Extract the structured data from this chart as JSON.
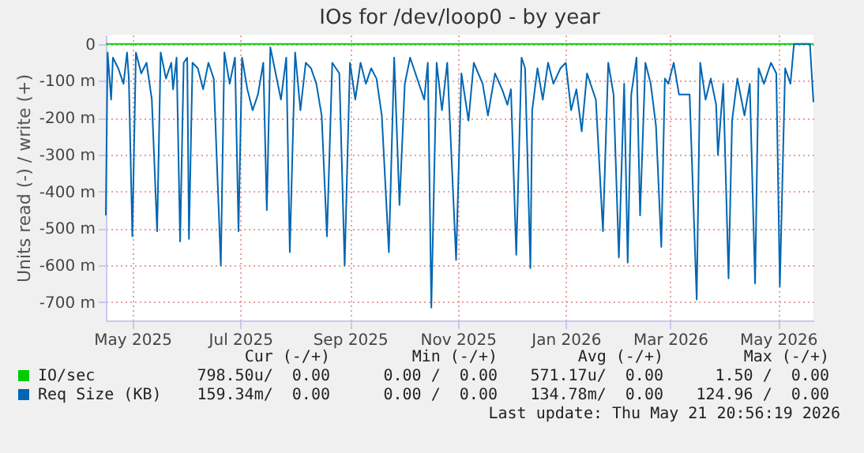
{
  "chart_data": {
    "type": "line",
    "title": "IOs for /dev/loop0 - by year",
    "ylabel": "Units read (-) / write (+)",
    "xlim": [
      "2025-04-16",
      "2026-05-21"
    ],
    "xticks": [
      {
        "value": "2025-05-01",
        "label": "May 2025"
      },
      {
        "value": "2025-07-01",
        "label": "Jul 2025"
      },
      {
        "value": "2025-09-01",
        "label": "Sep 2025"
      },
      {
        "value": "2025-11-01",
        "label": "Nov 2025"
      },
      {
        "value": "2026-01-01",
        "label": "Jan 2026"
      },
      {
        "value": "2026-03-01",
        "label": "Mar 2026"
      },
      {
        "value": "2026-05-01",
        "label": "May 2026"
      }
    ],
    "ylim": [
      -750,
      25
    ],
    "yticks": [
      0,
      {
        "value": -100,
        "label": "-100 m"
      },
      {
        "value": -200,
        "label": "-200 m"
      },
      {
        "value": -300,
        "label": "-300 m"
      },
      {
        "value": -400,
        "label": "-400 m"
      },
      {
        "value": -500,
        "label": "-500 m"
      },
      {
        "value": -600,
        "label": "-600 m"
      },
      {
        "value": -700,
        "label": "-700 m"
      }
    ],
    "grid": true,
    "legend": "bottom left",
    "series": [
      {
        "name": "IO/sec",
        "color": "#00cc00",
        "x": [
          "2025-04-16",
          "2026-05-21"
        ],
        "values": [
          0,
          0
        ]
      },
      {
        "name": "Req Size (KB)",
        "color": "#0066b3",
        "x": [
          "2025-04-16",
          "2025-04-17",
          "2025-04-19",
          "2025-04-20",
          "2025-04-23",
          "2025-04-26",
          "2025-04-28",
          "2025-04-29",
          "2025-05-01",
          "2025-05-03",
          "2025-05-06",
          "2025-05-09",
          "2025-05-12",
          "2025-05-15",
          "2025-05-17",
          "2025-05-20",
          "2025-05-23",
          "2025-05-24",
          "2025-05-26",
          "2025-05-28",
          "2025-05-30",
          "2025-06-01",
          "2025-06-02",
          "2025-06-04",
          "2025-06-07",
          "2025-06-10",
          "2025-06-13",
          "2025-06-16",
          "2025-06-20",
          "2025-06-22",
          "2025-06-25",
          "2025-06-28",
          "2025-06-30",
          "2025-07-02",
          "2025-07-05",
          "2025-07-08",
          "2025-07-11",
          "2025-07-14",
          "2025-07-16",
          "2025-07-18",
          "2025-07-21",
          "2025-07-24",
          "2025-07-27",
          "2025-07-29",
          "2025-08-01",
          "2025-08-04",
          "2025-08-07",
          "2025-08-10",
          "2025-08-13",
          "2025-08-16",
          "2025-08-19",
          "2025-08-22",
          "2025-08-26",
          "2025-08-29",
          "2025-09-01",
          "2025-09-04",
          "2025-09-07",
          "2025-09-10",
          "2025-09-13",
          "2025-09-16",
          "2025-09-19",
          "2025-09-23",
          "2025-09-26",
          "2025-09-29",
          "2025-10-02",
          "2025-10-05",
          "2025-10-08",
          "2025-10-13",
          "2025-10-15",
          "2025-10-17",
          "2025-10-20",
          "2025-10-23",
          "2025-10-26",
          "2025-10-31",
          "2025-11-03",
          "2025-11-07",
          "2025-11-10",
          "2025-11-15",
          "2025-11-18",
          "2025-11-22",
          "2025-11-26",
          "2025-11-29",
          "2025-12-01",
          "2025-12-04",
          "2025-12-07",
          "2025-12-09",
          "2025-12-12",
          "2025-12-13",
          "2025-12-16",
          "2025-12-19",
          "2025-12-22",
          "2025-12-25",
          "2025-12-29",
          "2026-01-01",
          "2026-01-04",
          "2026-01-07",
          "2026-01-10",
          "2026-01-13",
          "2026-01-18",
          "2026-01-22",
          "2026-01-25",
          "2026-01-28",
          "2026-01-31",
          "2026-02-03",
          "2026-02-05",
          "2026-02-07",
          "2026-02-10",
          "2026-02-12",
          "2026-02-15",
          "2026-02-18",
          "2026-02-21",
          "2026-02-24",
          "2026-02-26",
          "2026-02-28",
          "2026-03-03",
          "2026-03-06",
          "2026-03-12",
          "2026-03-16",
          "2026-03-18",
          "2026-03-21",
          "2026-03-24",
          "2026-03-27",
          "2026-03-28",
          "2026-03-31",
          "2026-04-03",
          "2026-04-05",
          "2026-04-08",
          "2026-04-12",
          "2026-04-15",
          "2026-04-18",
          "2026-04-20",
          "2026-04-23",
          "2026-04-27",
          "2026-04-30",
          "2026-05-02",
          "2026-05-05",
          "2026-05-08",
          "2026-05-10",
          "2026-05-19",
          "2026-05-21"
        ],
        "values": [
          -465,
          -23,
          -151,
          -37,
          -66,
          -108,
          -23,
          -94,
          -522,
          -23,
          -80,
          -51,
          -151,
          -508,
          -23,
          -94,
          -51,
          -123,
          -37,
          -536,
          -51,
          -37,
          -529,
          -51,
          -66,
          -123,
          -51,
          -94,
          -601,
          -23,
          -108,
          -37,
          -508,
          -37,
          -123,
          -180,
          -137,
          -51,
          -451,
          -9,
          -80,
          -151,
          -37,
          -565,
          -23,
          -180,
          -51,
          -66,
          -108,
          -194,
          -522,
          -51,
          -80,
          -601,
          -51,
          -151,
          -51,
          -108,
          -66,
          -94,
          -194,
          -565,
          -37,
          -437,
          -108,
          -37,
          -80,
          -151,
          -51,
          -715,
          -51,
          -180,
          -51,
          -586,
          -80,
          -208,
          -51,
          -108,
          -194,
          -80,
          -123,
          -165,
          -123,
          -572,
          -37,
          -66,
          -608,
          -180,
          -66,
          -151,
          -51,
          -108,
          -66,
          -51,
          -180,
          -123,
          -237,
          -80,
          -151,
          -508,
          -51,
          -137,
          -579,
          -108,
          -593,
          -137,
          -37,
          -465,
          -51,
          -108,
          -223,
          -551,
          -94,
          -108,
          -51,
          -137,
          -137,
          -693,
          -51,
          -151,
          -94,
          -165,
          -301,
          -108,
          -636,
          -208,
          -94,
          -194,
          -108,
          -650,
          -66,
          -108,
          -51,
          -80,
          -658,
          -66,
          -108,
          0,
          0,
          -158
        ]
      }
    ],
    "annotations": [
      "Cur (-/+)",
      "Min (-/+)",
      "Avg (-/+)",
      "Max (-/+)",
      "798.50u/  0.00",
      "0.00 /  0.00",
      "571.17u/  0.00",
      "1.50 /  0.00",
      "159.34m/  0.00",
      "0.00 /  0.00",
      "134.78m/  0.00",
      "124.96 /  0.00",
      "Last update: Thu May 21 20:56:19 2026"
    ]
  }
}
